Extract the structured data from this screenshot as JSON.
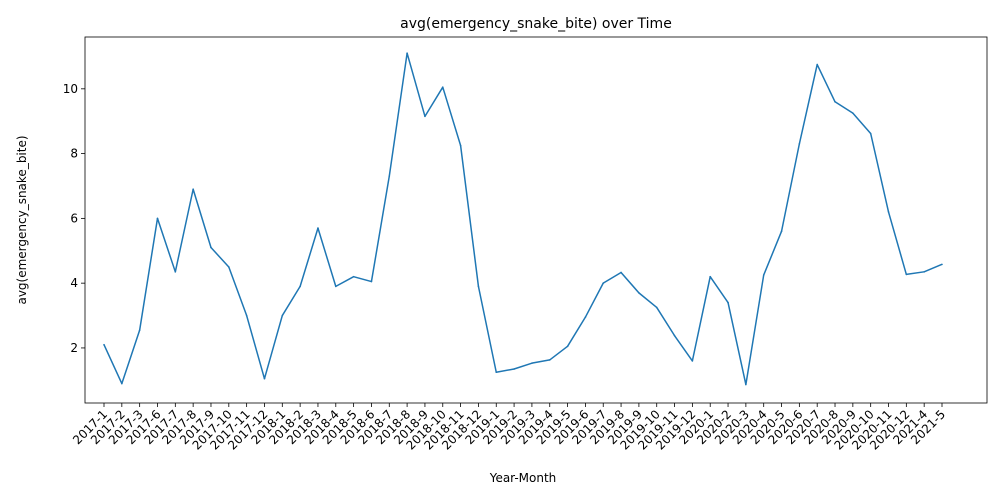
{
  "chart_data": {
    "type": "line",
    "title": "avg(emergency_snake_bite) over Time",
    "xlabel": "Year-Month",
    "ylabel": "avg(emergency_snake_bite)",
    "ylim": [
      0.3,
      11.6
    ],
    "yticks": [
      2,
      4,
      6,
      8,
      10
    ],
    "grid": false,
    "line_color": "#1f77b4",
    "categories": [
      "2017-1",
      "2017-2",
      "2017-3",
      "2017-6",
      "2017-7",
      "2017-8",
      "2017-9",
      "2017-10",
      "2017-11",
      "2017-12",
      "2018-1",
      "2018-2",
      "2018-3",
      "2018-4",
      "2018-5",
      "2018-6",
      "2018-7",
      "2018-8",
      "2018-9",
      "2018-10",
      "2018-11",
      "2018-12",
      "2019-1",
      "2019-2",
      "2019-3",
      "2019-4",
      "2019-5",
      "2019-6",
      "2019-7",
      "2019-8",
      "2019-9",
      "2019-10",
      "2019-11",
      "2019-12",
      "2020-1",
      "2020-2",
      "2020-3",
      "2020-4",
      "2020-5",
      "2020-6",
      "2020-7",
      "2020-8",
      "2020-9",
      "2020-10",
      "2020-11",
      "2020-12",
      "2021-4",
      "2021-5"
    ],
    "series": [
      {
        "values": [
          2.1,
          0.9,
          2.55,
          6.0,
          4.35,
          6.9,
          5.1,
          4.5,
          3.0,
          1.05,
          3.0,
          3.9,
          5.7,
          3.9,
          4.2,
          4.05,
          7.3,
          11.1,
          9.15,
          10.05,
          8.25,
          3.9,
          1.25,
          1.35,
          1.53,
          1.63,
          2.05,
          2.95,
          4.0,
          4.33,
          3.7,
          3.25,
          2.38,
          1.6,
          4.2,
          3.4,
          0.87,
          4.25,
          5.6,
          8.3,
          10.75,
          9.6,
          9.25,
          8.62,
          6.2,
          4.27,
          4.35,
          4.58
        ]
      }
    ]
  }
}
